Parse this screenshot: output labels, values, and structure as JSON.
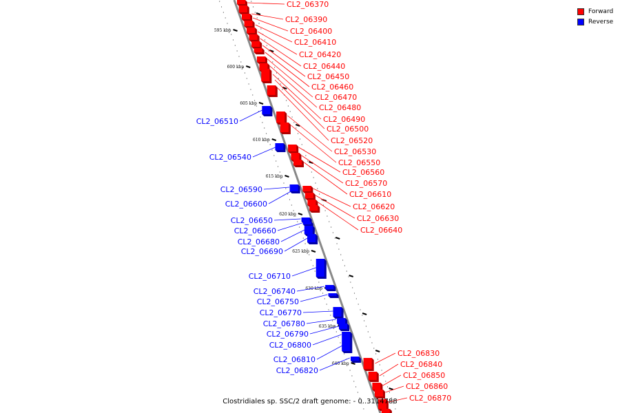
{
  "legend": [
    {
      "label": "Forward",
      "color": "#ff0000"
    },
    {
      "label": "Reverse",
      "color": "#0000ff"
    }
  ],
  "caption": "Clostridiales sp. SSC/2 draft genome: - 0..3114788",
  "ticks": [
    "595 kbp",
    "600 kbp",
    "605 kbp",
    "610 kbp",
    "615 kbp",
    "620 kbp",
    "625 kbp",
    "630 kbp",
    "635 kbp",
    "640 kbp"
  ],
  "forward_genes": [
    "CL2_06370",
    "CL2_06390",
    "CL2_06400",
    "CL2_06410",
    "CL2_06420",
    "CL2_06440",
    "CL2_06450",
    "CL2_06460",
    "CL2_06470",
    "CL2_06480",
    "CL2_06490",
    "CL2_06500",
    "CL2_06520",
    "CL2_06530",
    "CL2_06550",
    "CL2_06560",
    "CL2_06570",
    "CL2_06610",
    "CL2_06620",
    "CL2_06630",
    "CL2_06640",
    "CL2_06830",
    "CL2_06840",
    "CL2_06850",
    "CL2_06860",
    "CL2_06870"
  ],
  "reverse_genes": [
    "CL2_06510",
    "CL2_06540",
    "CL2_06590",
    "CL2_06600",
    "CL2_06650",
    "CL2_06660",
    "CL2_06680",
    "CL2_06690",
    "CL2_06710",
    "CL2_06740",
    "CL2_06750",
    "CL2_06770",
    "CL2_06780",
    "CL2_06790",
    "CL2_06800",
    "CL2_06810",
    "CL2_06820"
  ]
}
